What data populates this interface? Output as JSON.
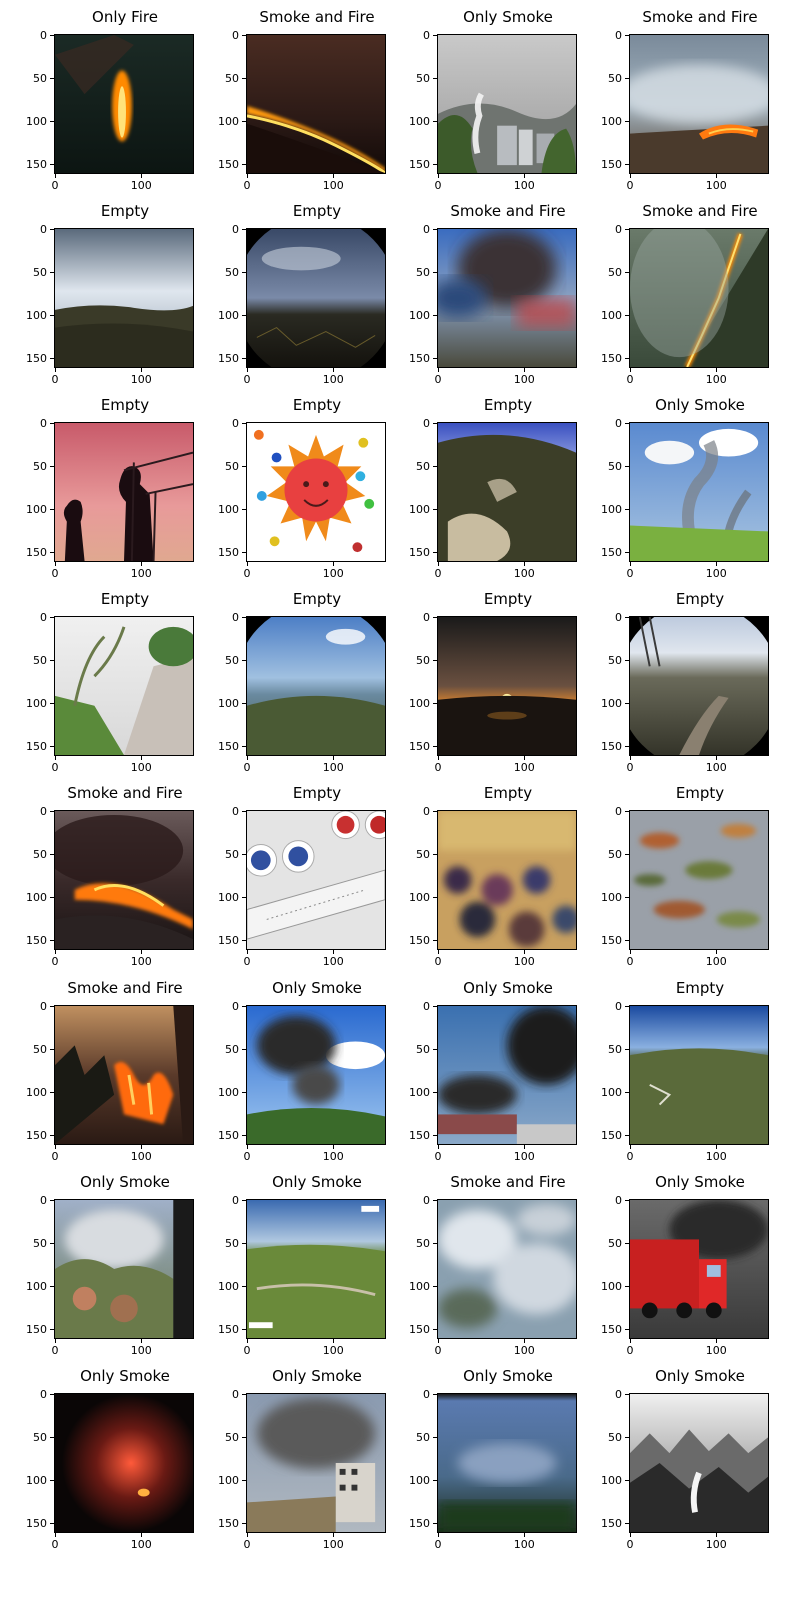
{
  "axis": {
    "y_ticks": [
      "0",
      "50",
      "100",
      "150"
    ],
    "x_ticks": [
      "0",
      "100"
    ]
  },
  "panels": [
    {
      "title": "Only Fire",
      "scene": "fire-dark"
    },
    {
      "title": "Smoke and Fire",
      "scene": "fireline-hill"
    },
    {
      "title": "Only Smoke",
      "scene": "smoke-city"
    },
    {
      "title": "Smoke and Fire",
      "scene": "smoke-fire-field"
    },
    {
      "title": "Empty",
      "scene": "sky-hill"
    },
    {
      "title": "Empty",
      "scene": "fisheye-sky"
    },
    {
      "title": "Smoke and Fire",
      "scene": "blurry-smoke"
    },
    {
      "title": "Smoke and Fire",
      "scene": "diagonal-fireline"
    },
    {
      "title": "Empty",
      "scene": "silhouette-cranes"
    },
    {
      "title": "Empty",
      "scene": "sun-drawing"
    },
    {
      "title": "Empty",
      "scene": "rocky-aerial"
    },
    {
      "title": "Only Smoke",
      "scene": "smoke-plumes-sky"
    },
    {
      "title": "Empty",
      "scene": "road-trees"
    },
    {
      "title": "Empty",
      "scene": "fisheye-valley"
    },
    {
      "title": "Empty",
      "scene": "sunset-lake"
    },
    {
      "title": "Empty",
      "scene": "fisheye-road"
    },
    {
      "title": "Smoke and Fire",
      "scene": "fire-hill-dark"
    },
    {
      "title": "Empty",
      "scene": "ruler-plates"
    },
    {
      "title": "Empty",
      "scene": "blurry-crowd"
    },
    {
      "title": "Empty",
      "scene": "blurry-leaves"
    },
    {
      "title": "Smoke and Fire",
      "scene": "forest-fire"
    },
    {
      "title": "Only Smoke",
      "scene": "black-smoke-blue-sky"
    },
    {
      "title": "Only Smoke",
      "scene": "black-smoke-trucks"
    },
    {
      "title": "Empty",
      "scene": "fisheye-hills-blue"
    },
    {
      "title": "Only Smoke",
      "scene": "smoke-trees-window"
    },
    {
      "title": "Only Smoke",
      "scene": "aerial-green"
    },
    {
      "title": "Smoke and Fire",
      "scene": "white-smoke-forest"
    },
    {
      "title": "Only Smoke",
      "scene": "fire-truck"
    },
    {
      "title": "Only Smoke",
      "scene": "dark-red-glow"
    },
    {
      "title": "Only Smoke",
      "scene": "smoke-building"
    },
    {
      "title": "Only Smoke",
      "scene": "blurry-blue"
    },
    {
      "title": "Only Smoke",
      "scene": "misty-mountains"
    }
  ]
}
